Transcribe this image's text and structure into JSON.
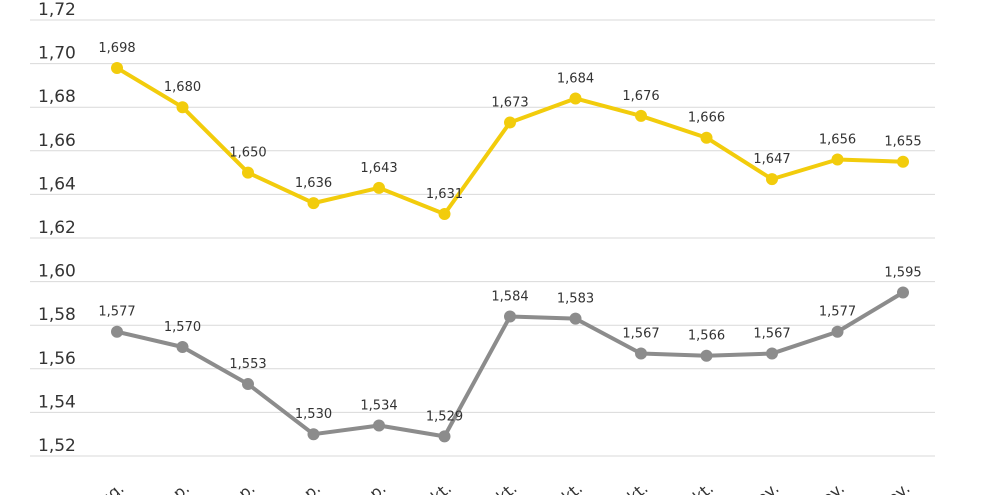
{
  "chart_data": {
    "type": "line",
    "categories": [
      "Aug.",
      "Sep.",
      "Sep.",
      "Sep.",
      "Sep.",
      "Okt.",
      "Okt.",
      "Okt.",
      "Okt.",
      "Okt.",
      "Nov.",
      "Nov.",
      "Nov."
    ],
    "series": [
      {
        "name": "Gelb",
        "color": "#f2cc0c",
        "values": [
          1.698,
          1.68,
          1.65,
          1.636,
          1.643,
          1.631,
          1.673,
          1.684,
          1.676,
          1.666,
          1.647,
          1.656,
          1.655
        ],
        "labels": [
          "1,698",
          "1,680",
          "1,650",
          "1,636",
          "1,643",
          "1,631",
          "1,673",
          "1,684",
          "1,676",
          "1,666",
          "1,647",
          "1,656",
          "1,655"
        ]
      },
      {
        "name": "Grau",
        "color": "#8c8c8c",
        "values": [
          1.577,
          1.57,
          1.553,
          1.53,
          1.534,
          1.529,
          1.584,
          1.583,
          1.567,
          1.566,
          1.567,
          1.577,
          1.595
        ],
        "labels": [
          "1,577",
          "1,570",
          "1,553",
          "1,530",
          "1,534",
          "1,529",
          "1,584",
          "1,583",
          "1,567",
          "1,566",
          "1,567",
          "1,577",
          "1,595"
        ]
      }
    ],
    "yticks": [
      1.52,
      1.54,
      1.56,
      1.58,
      1.6,
      1.62,
      1.64,
      1.66,
      1.68,
      1.7,
      1.72
    ],
    "ytick_labels": [
      "1,52",
      "1,54",
      "1,56",
      "1,58",
      "1,60",
      "1,62",
      "1,64",
      "1,66",
      "1,68",
      "1,70",
      "1,72"
    ],
    "ylim": [
      1.52,
      1.72
    ],
    "grid": true,
    "title": "",
    "xlabel": "",
    "ylabel": ""
  }
}
